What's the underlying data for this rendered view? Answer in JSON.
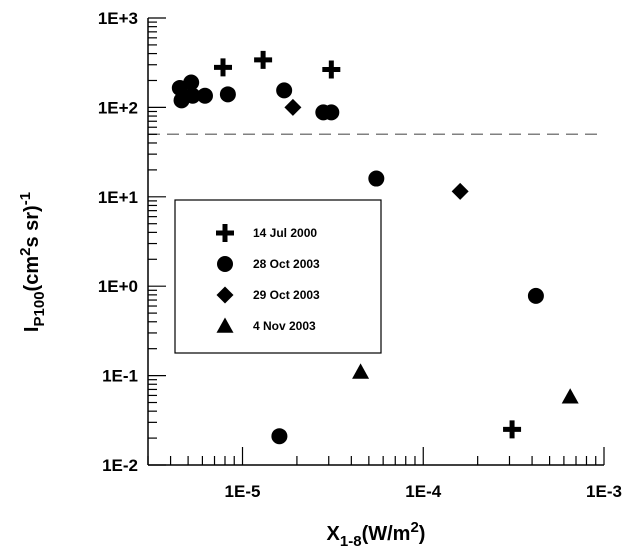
{
  "chart_data": {
    "type": "scatter",
    "xscale": "log",
    "yscale": "log",
    "xlim": [
      3e-06,
      0.001
    ],
    "ylim": [
      0.01,
      1000
    ],
    "x_tick_labels": [
      {
        "value": 1e-05,
        "label": "1E-5"
      },
      {
        "value": 0.0001,
        "label": "1E-4"
      },
      {
        "value": 0.001,
        "label": "1E-3"
      }
    ],
    "y_tick_labels": [
      {
        "value": 1000,
        "label": "1E+3"
      },
      {
        "value": 100,
        "label": "1E+2"
      },
      {
        "value": 10,
        "label": "1E+1"
      },
      {
        "value": 1,
        "label": "1E+0"
      },
      {
        "value": 0.1,
        "label": "1E-1"
      },
      {
        "value": 0.01,
        "label": "1E-2"
      }
    ],
    "xlabel": {
      "main": "X",
      "sub": "1-8",
      "rest": "(W/m",
      "sup": "2",
      "end": ")"
    },
    "ylabel": {
      "main": "I",
      "sub": "P100",
      "rest": "(cm",
      "sup": "2",
      "rest2": "s sr)",
      "sup2": "-1"
    },
    "threshold_line": {
      "y": 50,
      "style": "dashed",
      "color": "#808080"
    },
    "legend": {
      "placement": "center-left",
      "entries": [
        "14 Jul 2000",
        "28 Oct 2003",
        "29 Oct 2003",
        "4 Nov 2003"
      ]
    },
    "series": [
      {
        "name": "14 Jul 2000",
        "marker": "plus",
        "color": "#000000",
        "points": [
          [
            7.8e-06,
            280
          ],
          [
            1.3e-05,
            340
          ],
          [
            3.1e-05,
            265
          ],
          [
            0.00031,
            0.025
          ]
        ]
      },
      {
        "name": "28 Oct 2003",
        "marker": "circle",
        "color": "#000000",
        "points": [
          [
            4.5e-06,
            165
          ],
          [
            4.6e-06,
            120
          ],
          [
            5.2e-06,
            190
          ],
          [
            5.3e-06,
            135
          ],
          [
            6.2e-06,
            135
          ],
          [
            8.3e-06,
            140
          ],
          [
            1.7e-05,
            155
          ],
          [
            2.8e-05,
            88
          ],
          [
            3.1e-05,
            88
          ],
          [
            5.5e-05,
            16
          ],
          [
            1.6e-05,
            0.021
          ],
          [
            0.00042,
            0.78
          ]
        ]
      },
      {
        "name": "29 Oct 2003",
        "marker": "diamond",
        "color": "#000000",
        "points": [
          [
            1.9e-05,
            100
          ],
          [
            0.00016,
            11.5
          ]
        ]
      },
      {
        "name": "4 Nov 2003",
        "marker": "triangle",
        "color": "#000000",
        "points": [
          [
            4.5e-05,
            0.11
          ],
          [
            0.00065,
            0.058
          ]
        ]
      }
    ]
  }
}
